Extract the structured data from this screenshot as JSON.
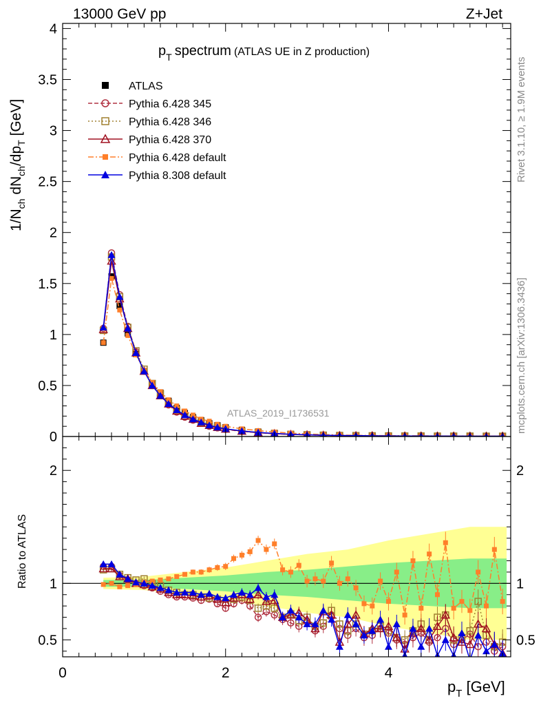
{
  "header": {
    "left": "13000 GeV pp",
    "right": "Z+Jet"
  },
  "side": {
    "rivet": "Rivet 3.1.10, ≥ 1.9M events",
    "mcplots": "mcplots.cern.ch [arXiv:1306.3436]"
  },
  "chart_data": [
    {
      "type": "line",
      "title_main": "p",
      "title_sub": "T",
      "title_rest": "spectrum",
      "title_paren": "(ATLAS UE in Z production)",
      "watermark": "ATLAS_2019_I1736531",
      "ylabel": "1/N_ch dN_ch/dp_T [GeV]",
      "ylabel_parts": [
        "1/N",
        "ch",
        " dN",
        "ch",
        "/dp",
        "T",
        " [GeV]"
      ],
      "xlim": [
        0,
        5.5
      ],
      "ylim": [
        0,
        4.05
      ],
      "yticks": [
        0,
        0.5,
        1,
        1.5,
        2,
        2.5,
        3,
        3.5,
        4
      ],
      "ytick_labels": [
        "0",
        "0.5",
        "1",
        "1.5",
        "2",
        "2.5",
        "3",
        "3.5",
        "4"
      ],
      "x": [
        0.5,
        0.6,
        0.7,
        0.8,
        0.9,
        1.0,
        1.1,
        1.2,
        1.3,
        1.4,
        1.5,
        1.6,
        1.7,
        1.8,
        1.9,
        2.0,
        2.2,
        2.4,
        2.6,
        2.8,
        3.0,
        3.2,
        3.4,
        3.6,
        3.8,
        4.0,
        4.2,
        4.4,
        4.6,
        4.8,
        5.0,
        5.2,
        5.4
      ],
      "series": [
        {
          "name": "ATLAS",
          "values": [
            0.92,
            1.57,
            1.28,
            1.01,
            0.81,
            0.64,
            0.52,
            0.43,
            0.35,
            0.28,
            0.23,
            0.19,
            0.16,
            0.13,
            0.11,
            0.09,
            0.065,
            0.048,
            0.036,
            0.027,
            0.021,
            0.017,
            0.014,
            0.012,
            0.01,
            0.009,
            0.008,
            0.007,
            0.006,
            0.006,
            0.005,
            0.005,
            0.005
          ]
        },
        {
          "name": "Pythia 6.428 345",
          "values": [
            1.06,
            1.8,
            1.39,
            1.08,
            0.83,
            0.64,
            0.5,
            0.4,
            0.31,
            0.24,
            0.19,
            0.16,
            0.13,
            0.1,
            0.085,
            0.07,
            0.05,
            0.037,
            0.027,
            0.02,
            0.016,
            0.012,
            0.009,
            0.008,
            0.007,
            0.006,
            0.005,
            0.005,
            0.004,
            0.004,
            0.003,
            0.003,
            0.003
          ]
        },
        {
          "name": "Pythia 6.428 346",
          "values": [
            1.04,
            1.76,
            1.37,
            1.07,
            0.84,
            0.66,
            0.52,
            0.42,
            0.33,
            0.26,
            0.2,
            0.17,
            0.14,
            0.11,
            0.09,
            0.074,
            0.053,
            0.04,
            0.029,
            0.021,
            0.017,
            0.013,
            0.01,
            0.009,
            0.007,
            0.006,
            0.005,
            0.005,
            0.004,
            0.004,
            0.004,
            0.003,
            0.003
          ]
        },
        {
          "name": "Pythia 6.428 370",
          "values": [
            1.05,
            1.72,
            1.35,
            1.06,
            0.82,
            0.64,
            0.5,
            0.4,
            0.32,
            0.25,
            0.2,
            0.17,
            0.13,
            0.11,
            0.09,
            0.073,
            0.052,
            0.038,
            0.028,
            0.02,
            0.016,
            0.012,
            0.009,
            0.008,
            0.007,
            0.006,
            0.005,
            0.005,
            0.004,
            0.004,
            0.003,
            0.003,
            0.003
          ]
        },
        {
          "name": "Pythia 6.428 default",
          "values": [
            0.92,
            1.55,
            1.24,
            0.99,
            0.8,
            0.65,
            0.53,
            0.44,
            0.36,
            0.3,
            0.25,
            0.21,
            0.17,
            0.15,
            0.12,
            0.1,
            0.075,
            0.058,
            0.044,
            0.033,
            0.025,
            0.019,
            0.015,
            0.012,
            0.01,
            0.009,
            0.008,
            0.007,
            0.006,
            0.005,
            0.005,
            0.004,
            0.004
          ]
        },
        {
          "name": "Pythia 8.308 default",
          "values": [
            1.07,
            1.78,
            1.37,
            1.06,
            0.82,
            0.64,
            0.5,
            0.4,
            0.32,
            0.26,
            0.21,
            0.17,
            0.14,
            0.11,
            0.09,
            0.075,
            0.055,
            0.04,
            0.03,
            0.022,
            0.017,
            0.013,
            0.01,
            0.009,
            0.007,
            0.006,
            0.005,
            0.005,
            0.004,
            0.004,
            0.003,
            0.003,
            0.003
          ]
        }
      ],
      "colors": [
        "#000000",
        "#b03040",
        "#a08030",
        "#a01020",
        "#ff7f2a",
        "#0000e0"
      ],
      "legend": "top-left"
    },
    {
      "type": "line",
      "ylabel": "Ratio to ATLAS",
      "xlabel_main": "p",
      "xlabel_sub": "T",
      "xlabel_rest": " [GeV]",
      "xlim": [
        0,
        5.5
      ],
      "ylim": [
        0.35,
        2.3
      ],
      "xticks": [
        0,
        2,
        4
      ],
      "xtick_labels": [
        "0",
        "2",
        "4"
      ],
      "yticks": [
        0.5,
        1,
        2
      ],
      "ytick_labels": [
        "0.5",
        "1",
        "2"
      ],
      "reference_line": 1,
      "band_x": [
        0.5,
        1.0,
        1.5,
        2.0,
        2.5,
        3.0,
        3.5,
        4.0,
        4.5,
        5.0,
        5.45
      ],
      "band_green_half": [
        0.03,
        0.03,
        0.05,
        0.07,
        0.1,
        0.12,
        0.15,
        0.18,
        0.2,
        0.22,
        0.22
      ],
      "band_yellow_half": [
        0.05,
        0.06,
        0.1,
        0.14,
        0.2,
        0.26,
        0.3,
        0.38,
        0.44,
        0.5,
        0.5
      ],
      "x": [
        0.5,
        0.6,
        0.7,
        0.8,
        0.9,
        1.0,
        1.1,
        1.2,
        1.3,
        1.4,
        1.5,
        1.6,
        1.7,
        1.8,
        1.9,
        2.0,
        2.1,
        2.2,
        2.3,
        2.4,
        2.5,
        2.6,
        2.7,
        2.8,
        2.9,
        3.0,
        3.1,
        3.2,
        3.3,
        3.4,
        3.5,
        3.6,
        3.7,
        3.8,
        3.9,
        4.0,
        4.1,
        4.2,
        4.3,
        4.4,
        4.5,
        4.6,
        4.7,
        4.8,
        4.9,
        5.0,
        5.1,
        5.2,
        5.3,
        5.4
      ],
      "series": [
        {
          "name": "Pythia 6.428 345",
          "values": [
            1.15,
            1.15,
            1.07,
            1.03,
            1.0,
            0.98,
            0.96,
            0.93,
            0.9,
            0.88,
            0.88,
            0.87,
            0.85,
            0.86,
            0.82,
            0.78,
            0.82,
            0.85,
            0.8,
            0.7,
            0.75,
            0.72,
            0.68,
            0.65,
            0.62,
            0.66,
            0.58,
            0.62,
            0.72,
            0.6,
            0.54,
            0.6,
            0.52,
            0.54,
            0.6,
            0.56,
            0.5,
            0.46,
            0.52,
            0.56,
            0.48,
            0.52,
            0.6,
            0.46,
            0.5,
            0.55,
            0.44,
            0.48,
            0.4,
            0.44
          ]
        },
        {
          "name": "Pythia 6.428 346",
          "values": [
            1.12,
            1.13,
            1.08,
            1.05,
            1.03,
            1.04,
            1.0,
            0.98,
            0.94,
            0.92,
            0.9,
            0.9,
            0.88,
            0.87,
            0.86,
            0.83,
            0.86,
            0.88,
            0.85,
            0.78,
            0.8,
            0.78,
            0.7,
            0.73,
            0.67,
            0.7,
            0.62,
            0.65,
            0.76,
            0.64,
            0.58,
            0.64,
            0.55,
            0.58,
            0.62,
            0.58,
            0.52,
            0.5,
            0.58,
            0.64,
            0.5,
            0.7,
            0.72,
            0.5,
            0.52,
            0.58,
            0.84,
            0.54,
            0.44,
            0.48
          ]
        },
        {
          "name": "Pythia 6.428 370",
          "values": [
            1.13,
            1.13,
            1.06,
            1.04,
            1.0,
            0.99,
            0.97,
            0.95,
            0.92,
            0.9,
            0.9,
            0.89,
            0.88,
            0.89,
            0.86,
            0.83,
            0.87,
            0.9,
            0.86,
            0.9,
            0.84,
            0.85,
            0.7,
            0.72,
            0.74,
            0.68,
            0.6,
            0.75,
            0.72,
            0.48,
            0.64,
            0.72,
            0.55,
            0.6,
            0.6,
            0.62,
            0.52,
            0.42,
            0.56,
            0.6,
            0.5,
            0.62,
            0.72,
            0.52,
            0.48,
            0.46,
            0.64,
            0.6,
            0.46,
            0.38
          ]
        },
        {
          "name": "Pythia 6.428 default",
          "values": [
            0.99,
            1.0,
            0.97,
            0.98,
            0.99,
            1.01,
            1.02,
            1.03,
            1.04,
            1.06,
            1.08,
            1.1,
            1.1,
            1.12,
            1.14,
            1.15,
            1.22,
            1.25,
            1.28,
            1.38,
            1.3,
            1.35,
            1.12,
            1.1,
            1.16,
            1.02,
            1.04,
            1.02,
            1.18,
            1.0,
            1.04,
            0.96,
            0.82,
            0.8,
            1.02,
            0.84,
            1.1,
            0.72,
            1.2,
            0.78,
            1.26,
            0.9,
            1.36,
            0.78,
            0.84,
            0.76,
            1.1,
            0.8,
            1.3,
            0.84
          ]
        },
        {
          "name": "Pythia 8.308 default",
          "values": [
            1.17,
            1.17,
            1.08,
            1.04,
            1.01,
            1.0,
            0.98,
            0.96,
            0.94,
            0.92,
            0.92,
            0.92,
            0.9,
            0.91,
            0.88,
            0.87,
            0.9,
            0.92,
            0.9,
            0.96,
            0.88,
            0.9,
            0.7,
            0.76,
            0.7,
            0.64,
            0.64,
            0.76,
            0.68,
            0.44,
            0.72,
            0.64,
            0.54,
            0.58,
            0.68,
            0.44,
            0.64,
            0.36,
            0.6,
            0.44,
            0.6,
            0.36,
            0.5,
            0.36,
            0.56,
            0.32,
            0.54,
            0.4,
            0.46,
            0.38
          ]
        }
      ]
    }
  ]
}
